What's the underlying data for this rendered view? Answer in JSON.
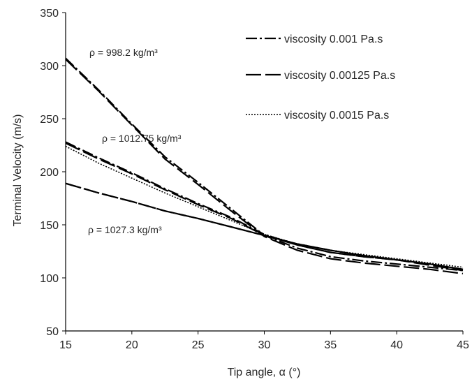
{
  "chart_data": {
    "type": "line",
    "xlabel": "Tip angle, α (°)",
    "ylabel": "Terminal Velocity (m/s)",
    "xlim": [
      15,
      45
    ],
    "ylim": [
      50,
      350
    ],
    "xticks": [
      15,
      20,
      25,
      30,
      35,
      40,
      45
    ],
    "yticks": [
      50,
      100,
      150,
      200,
      250,
      300,
      350
    ],
    "grid": false,
    "legend_position": "top-right",
    "x": [
      15,
      17.5,
      20,
      22.5,
      25,
      27.5,
      30,
      32.5,
      35,
      37.5,
      40,
      42.5,
      45
    ],
    "series": [
      {
        "name": "viscosity 0.001 Pa.s",
        "style": "dash-dot",
        "color": "#000000",
        "groups": [
          {
            "density": "998.2",
            "values": [
              307,
              277,
              245,
              214,
              190,
              165,
              140,
              128,
              120,
              116,
              113,
              110,
              107
            ]
          },
          {
            "density": "1012.75",
            "values": [
              228,
              213,
              199,
              184,
              170,
              157,
              141,
              131,
              124,
              120,
              117,
              113,
              108
            ]
          },
          {
            "density": "1027.3",
            "values": [
              189,
              180,
              172,
              163,
              156,
              148,
              140,
              132,
              126,
              121,
              117,
              113,
              108
            ]
          }
        ]
      },
      {
        "name": "viscosity 0.00125 Pa.s",
        "style": "long-dash",
        "color": "#000000",
        "groups": [
          {
            "density": "998.2",
            "values": [
              306,
              276,
              244,
              212,
              188,
              163,
              139,
              126,
              118,
              114,
              111,
              108,
              104
            ]
          },
          {
            "density": "1012.75",
            "values": [
              227,
              212,
              198,
              183,
              169,
              156,
              140,
              131,
              124,
              120,
              117,
              112,
              107
            ]
          },
          {
            "density": "1027.3",
            "values": [
              189,
              180,
              172,
              163,
              156,
              148,
              140,
              132,
              126,
              121,
              117,
              113,
              108
            ]
          }
        ]
      },
      {
        "name": "viscosity 0.0015 Pa.s",
        "style": "dotted",
        "color": "#000000",
        "groups": [
          {
            "density": "1012.75",
            "values": [
              224,
              208,
              194,
              180,
              167,
              154,
              141,
              132,
              126,
              122,
              118,
              114,
              110
            ]
          }
        ]
      }
    ],
    "annotations": [
      {
        "id": "rho-998",
        "text": "ρ = 998.2  kg/m³"
      },
      {
        "id": "rho-1012",
        "text": "ρ = 1012.75  kg/m³"
      },
      {
        "id": "rho-1027",
        "text": "ρ = 1027.3  kg/m³"
      }
    ]
  }
}
